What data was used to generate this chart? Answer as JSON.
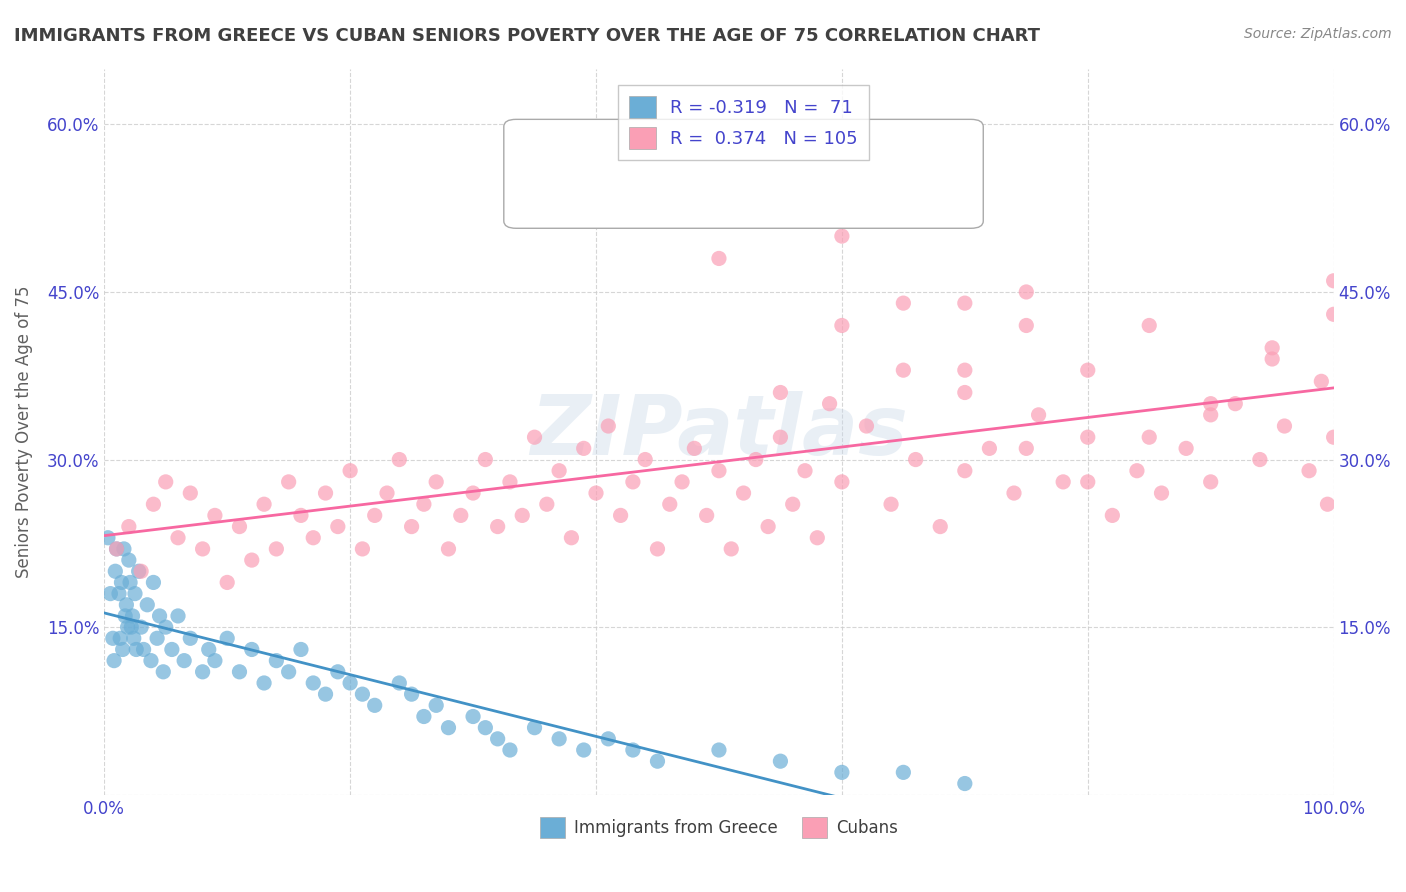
{
  "title": "IMMIGRANTS FROM GREECE VS CUBAN SENIORS POVERTY OVER THE AGE OF 75 CORRELATION CHART",
  "source": "Source: ZipAtlas.com",
  "ylabel": "Seniors Poverty Over the Age of 75",
  "xlabel": "",
  "legend_label1": "Immigrants from Greece",
  "legend_label2": "Cubans",
  "R1": -0.319,
  "N1": 71,
  "R2": 0.374,
  "N2": 105,
  "color1": "#6baed6",
  "color2": "#fa9fb5",
  "line_color1": "#4292c6",
  "line_color2": "#f768a1",
  "xlim": [
    0,
    1.0
  ],
  "ylim": [
    0,
    0.65
  ],
  "xticks": [
    0.0,
    0.2,
    0.4,
    0.6,
    0.8,
    1.0
  ],
  "xticklabels": [
    "0.0%",
    "",
    "",
    "",
    "",
    "100.0%"
  ],
  "yticks": [
    0.0,
    0.15,
    0.3,
    0.45,
    0.6
  ],
  "yticklabels": [
    "",
    "15.0%",
    "30.0%",
    "45.0%",
    "60.0%"
  ],
  "watermark": "ZIPatlas",
  "background": "#ffffff",
  "grid_color": "#cccccc",
  "title_color": "#404040",
  "title_fontsize": 13,
  "axis_label_color": "#606060",
  "tick_color": "#4444cc",
  "scatter1_x": [
    0.003,
    0.005,
    0.007,
    0.008,
    0.009,
    0.01,
    0.012,
    0.013,
    0.014,
    0.015,
    0.016,
    0.017,
    0.018,
    0.019,
    0.02,
    0.021,
    0.022,
    0.023,
    0.024,
    0.025,
    0.026,
    0.028,
    0.03,
    0.032,
    0.035,
    0.038,
    0.04,
    0.043,
    0.045,
    0.048,
    0.05,
    0.055,
    0.06,
    0.065,
    0.07,
    0.08,
    0.085,
    0.09,
    0.1,
    0.11,
    0.12,
    0.13,
    0.14,
    0.15,
    0.16,
    0.17,
    0.18,
    0.19,
    0.2,
    0.21,
    0.22,
    0.24,
    0.25,
    0.26,
    0.27,
    0.28,
    0.3,
    0.31,
    0.32,
    0.33,
    0.35,
    0.37,
    0.39,
    0.41,
    0.43,
    0.45,
    0.5,
    0.55,
    0.6,
    0.65,
    0.7
  ],
  "scatter1_y": [
    0.23,
    0.18,
    0.14,
    0.12,
    0.2,
    0.22,
    0.18,
    0.14,
    0.19,
    0.13,
    0.22,
    0.16,
    0.17,
    0.15,
    0.21,
    0.19,
    0.15,
    0.16,
    0.14,
    0.18,
    0.13,
    0.2,
    0.15,
    0.13,
    0.17,
    0.12,
    0.19,
    0.14,
    0.16,
    0.11,
    0.15,
    0.13,
    0.16,
    0.12,
    0.14,
    0.11,
    0.13,
    0.12,
    0.14,
    0.11,
    0.13,
    0.1,
    0.12,
    0.11,
    0.13,
    0.1,
    0.09,
    0.11,
    0.1,
    0.09,
    0.08,
    0.1,
    0.09,
    0.07,
    0.08,
    0.06,
    0.07,
    0.06,
    0.05,
    0.04,
    0.06,
    0.05,
    0.04,
    0.05,
    0.04,
    0.03,
    0.04,
    0.03,
    0.02,
    0.02,
    0.01
  ],
  "scatter2_x": [
    0.01,
    0.02,
    0.03,
    0.04,
    0.05,
    0.06,
    0.07,
    0.08,
    0.09,
    0.1,
    0.11,
    0.12,
    0.13,
    0.14,
    0.15,
    0.16,
    0.17,
    0.18,
    0.19,
    0.2,
    0.21,
    0.22,
    0.23,
    0.24,
    0.25,
    0.26,
    0.27,
    0.28,
    0.29,
    0.3,
    0.31,
    0.32,
    0.33,
    0.34,
    0.35,
    0.36,
    0.37,
    0.38,
    0.39,
    0.4,
    0.41,
    0.42,
    0.43,
    0.44,
    0.45,
    0.46,
    0.47,
    0.48,
    0.49,
    0.5,
    0.51,
    0.52,
    0.53,
    0.54,
    0.55,
    0.56,
    0.57,
    0.58,
    0.59,
    0.6,
    0.62,
    0.64,
    0.66,
    0.68,
    0.7,
    0.72,
    0.74,
    0.76,
    0.78,
    0.8,
    0.82,
    0.84,
    0.86,
    0.88,
    0.9,
    0.92,
    0.94,
    0.96,
    0.98,
    0.99,
    0.995,
    1.0,
    0.55,
    0.6,
    0.65,
    0.7,
    0.75,
    0.8,
    0.85,
    0.9,
    0.95,
    1.0,
    0.7,
    0.75,
    0.8,
    0.85,
    0.9,
    0.95,
    1.0,
    0.5,
    0.55,
    0.6,
    0.65,
    0.7,
    0.75
  ],
  "scatter2_y": [
    0.22,
    0.24,
    0.2,
    0.26,
    0.28,
    0.23,
    0.27,
    0.22,
    0.25,
    0.19,
    0.24,
    0.21,
    0.26,
    0.22,
    0.28,
    0.25,
    0.23,
    0.27,
    0.24,
    0.29,
    0.22,
    0.25,
    0.27,
    0.3,
    0.24,
    0.26,
    0.28,
    0.22,
    0.25,
    0.27,
    0.3,
    0.24,
    0.28,
    0.25,
    0.32,
    0.26,
    0.29,
    0.23,
    0.31,
    0.27,
    0.33,
    0.25,
    0.28,
    0.3,
    0.22,
    0.26,
    0.28,
    0.31,
    0.25,
    0.29,
    0.22,
    0.27,
    0.3,
    0.24,
    0.32,
    0.26,
    0.29,
    0.23,
    0.35,
    0.28,
    0.33,
    0.26,
    0.3,
    0.24,
    0.29,
    0.31,
    0.27,
    0.34,
    0.28,
    0.32,
    0.25,
    0.29,
    0.27,
    0.31,
    0.28,
    0.35,
    0.3,
    0.33,
    0.29,
    0.37,
    0.26,
    0.32,
    0.52,
    0.42,
    0.44,
    0.38,
    0.45,
    0.28,
    0.32,
    0.35,
    0.39,
    0.43,
    0.36,
    0.31,
    0.38,
    0.42,
    0.34,
    0.4,
    0.46,
    0.48,
    0.36,
    0.5,
    0.38,
    0.44,
    0.42
  ]
}
